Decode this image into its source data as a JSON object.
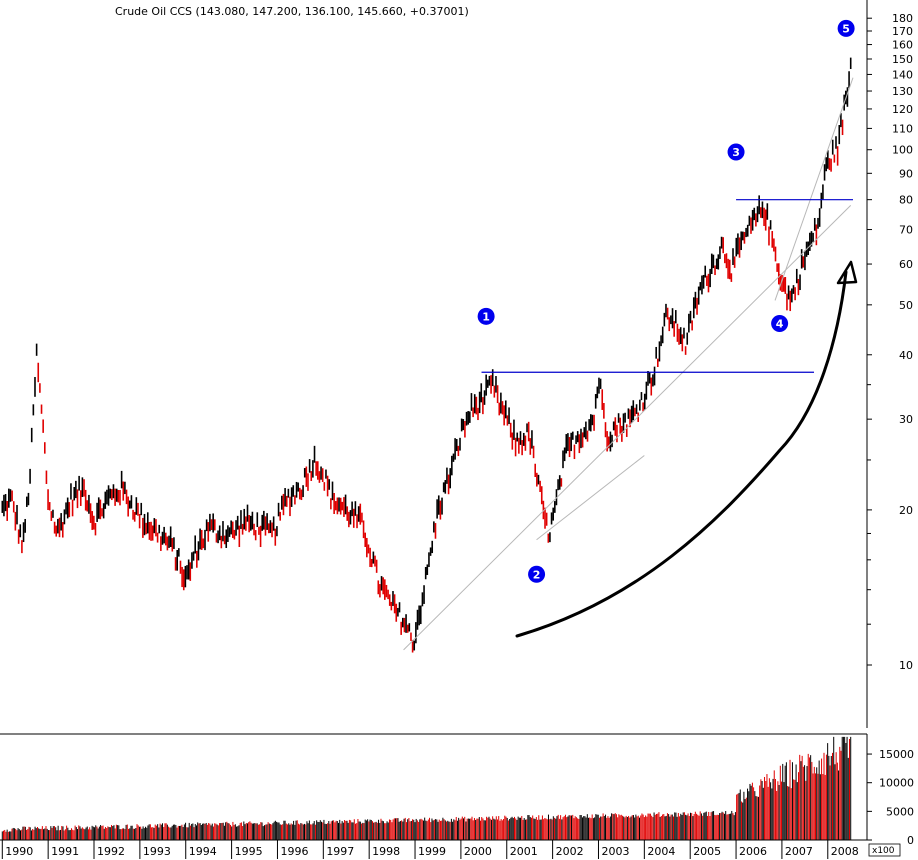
{
  "chart_data": {
    "type": "bar",
    "title": "Crude Oil CCS (143.080, 147.200, 136.100, 145.660, +0.37001)",
    "price_scale": "log",
    "price_ticks": [
      10,
      20,
      30,
      40,
      50,
      60,
      70,
      80,
      90,
      100,
      110,
      120,
      130,
      140,
      150,
      160,
      170,
      180
    ],
    "price_ylim": [
      9.3,
      190
    ],
    "x_range": [
      1989.95,
      2008.55
    ],
    "years": [
      "1990",
      "1991",
      "1992",
      "1993",
      "1994",
      "1995",
      "1996",
      "1997",
      "1998",
      "1999",
      "2000",
      "2001",
      "2002",
      "2003",
      "2004",
      "2005",
      "2006",
      "2007",
      "2008"
    ],
    "series": [
      {
        "x": [
          1990.0,
          1990.2,
          1990.45,
          1990.6,
          1990.75,
          1990.9,
          1991.0,
          1991.2,
          1991.5,
          1991.8,
          1992.0,
          1992.3,
          1992.6,
          1992.9,
          1993.1,
          1993.4,
          1993.7,
          1993.9,
          1994.0,
          1994.2,
          1994.5,
          1994.8,
          1995.0,
          1995.3,
          1995.6,
          1995.9,
          1996.2,
          1996.5,
          1996.8,
          1996.95,
          1997.2,
          1997.5,
          1997.8,
          1998.0,
          1998.2,
          1998.5,
          1998.8,
          1998.95,
          1999.2,
          1999.5,
          1999.8,
          2000.0,
          2000.2,
          2000.5,
          2000.7,
          2000.85,
          2001.0,
          2001.2,
          2001.5,
          2001.7,
          2001.9,
          2002.0,
          2002.3,
          2002.6,
          2002.9,
          2003.0,
          2003.2,
          2003.4,
          2003.7,
          2003.9,
          2004.2,
          2004.5,
          2004.8,
          2004.9,
          2005.2,
          2005.5,
          2005.7,
          2005.9,
          2006.2,
          2006.5,
          2006.6,
          2006.9,
          2007.0,
          2007.2,
          2007.5,
          2007.8,
          2007.9,
          2008.0,
          2008.2,
          2008.4,
          2008.5
        ],
        "values": [
          20.0,
          21.0,
          17.0,
          23.0,
          40.0,
          28.0,
          21.0,
          18.0,
          21.0,
          22.0,
          19.0,
          21.0,
          22.0,
          20.0,
          19.0,
          18.0,
          17.0,
          15.5,
          14.5,
          16.5,
          18.5,
          18.0,
          18.0,
          19.0,
          18.5,
          18.0,
          21.0,
          22.0,
          25.0,
          24.0,
          21.0,
          20.0,
          19.0,
          17.0,
          14.5,
          13.0,
          12.0,
          11.0,
          14.0,
          20.0,
          24.0,
          28.0,
          31.0,
          33.0,
          35.0,
          32.0,
          30.0,
          27.0,
          28.0,
          22.0,
          18.0,
          19.0,
          26.0,
          28.0,
          30.0,
          36.0,
          28.0,
          29.0,
          30.0,
          32.0,
          37.0,
          48.0,
          44.0,
          42.0,
          53.0,
          60.0,
          65.0,
          59.0,
          68.0,
          75.0,
          78.0,
          61.0,
          55.0,
          51.0,
          62.0,
          72.0,
          85.0,
          95.0,
          100.0,
          125.0,
          145.0
        ]
      }
    ],
    "volume": {
      "ylabel": "x100",
      "ticks": [
        0,
        5000,
        10000,
        15000
      ],
      "ylim": [
        0,
        18500
      ]
    },
    "annotations": [
      {
        "type": "wave",
        "label": "1"
      },
      {
        "type": "wave",
        "label": "2"
      },
      {
        "type": "wave",
        "label": "3"
      },
      {
        "type": "wave",
        "label": "4"
      },
      {
        "type": "wave",
        "label": "5"
      }
    ],
    "colors": {
      "up": "#000000",
      "down": "#e00000",
      "level": "#0000cc",
      "trend": "#b8b8b8",
      "wave": "#0000ee"
    },
    "grid": false
  }
}
